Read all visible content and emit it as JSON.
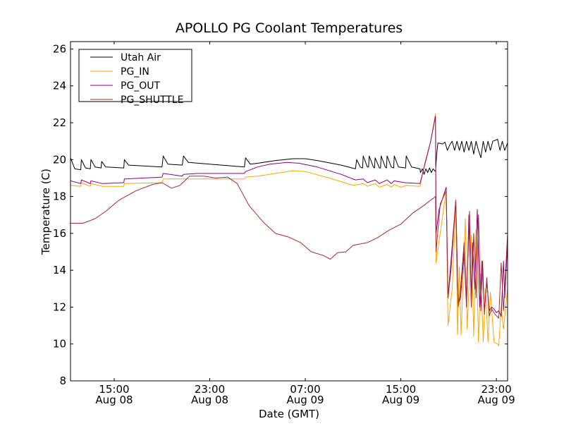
{
  "chart_data": {
    "type": "line",
    "title": "APOLLO PG Coolant Temperatures",
    "xlabel": "Date (GMT)",
    "ylabel": "Temperature (C)",
    "x_units": "hours since Aug 08 00:00 GMT",
    "xlim": [
      11.34,
      47.94
    ],
    "ylim": [
      8,
      26.4
    ],
    "yticks": [
      8,
      10,
      12,
      14,
      16,
      18,
      20,
      22,
      24,
      26
    ],
    "xticks": [
      {
        "x": 15,
        "time": "15:00",
        "date": "Aug 08"
      },
      {
        "x": 23,
        "time": "23:00",
        "date": "Aug 08"
      },
      {
        "x": 31,
        "time": "07:00",
        "date": "Aug 09"
      },
      {
        "x": 39,
        "time": "15:00",
        "date": "Aug 09"
      },
      {
        "x": 47,
        "time": "23:00",
        "date": "Aug 09"
      }
    ],
    "grid": false,
    "legend_position": "top-left",
    "series": [
      {
        "name": "Utah Air",
        "color": "#000000",
        "points": [
          [
            11.34,
            20.1
          ],
          [
            11.7,
            19.5
          ],
          [
            12.2,
            19.45
          ],
          [
            12.25,
            20.0
          ],
          [
            12.6,
            19.55
          ],
          [
            13.0,
            19.5
          ],
          [
            13.05,
            20.0
          ],
          [
            13.4,
            19.6
          ],
          [
            13.9,
            19.55
          ],
          [
            13.95,
            19.9
          ],
          [
            14.3,
            19.6
          ],
          [
            15.8,
            19.55
          ],
          [
            15.85,
            20.0
          ],
          [
            16.2,
            19.7
          ],
          [
            19.0,
            19.6
          ],
          [
            19.1,
            20.2
          ],
          [
            19.5,
            19.75
          ],
          [
            20.7,
            19.7
          ],
          [
            20.8,
            20.2
          ],
          [
            21.2,
            19.85
          ],
          [
            23,
            19.75
          ],
          [
            25.9,
            19.6
          ],
          [
            26.0,
            20.1
          ],
          [
            26.4,
            19.75
          ],
          [
            27,
            19.8
          ],
          [
            28.5,
            19.95
          ],
          [
            30,
            20.05
          ],
          [
            31,
            20.05
          ],
          [
            32,
            19.95
          ],
          [
            34,
            19.7
          ],
          [
            35.2,
            19.5
          ],
          [
            35.3,
            20.0
          ],
          [
            35.6,
            19.6
          ],
          [
            35.8,
            19.55
          ],
          [
            35.85,
            20.2
          ],
          [
            36.2,
            19.6
          ],
          [
            36.3,
            19.6
          ],
          [
            36.35,
            20.2
          ],
          [
            36.7,
            19.6
          ],
          [
            36.8,
            19.55
          ],
          [
            36.85,
            20.1
          ],
          [
            37.2,
            19.55
          ],
          [
            37.3,
            19.55
          ],
          [
            37.35,
            20.2
          ],
          [
            37.7,
            19.6
          ],
          [
            37.8,
            19.55
          ],
          [
            37.85,
            20.2
          ],
          [
            38.2,
            19.6
          ],
          [
            38.4,
            19.55
          ],
          [
            38.45,
            20.2
          ],
          [
            38.8,
            19.6
          ],
          [
            39.4,
            19.55
          ],
          [
            39.45,
            20.2
          ],
          [
            39.9,
            19.6
          ],
          [
            40.6,
            19.5
          ],
          [
            40.65,
            19.3
          ],
          [
            40.8,
            19.5
          ],
          [
            40.95,
            19.2
          ],
          [
            41.1,
            19.5
          ],
          [
            41.25,
            19.3
          ],
          [
            41.4,
            19.55
          ],
          [
            41.55,
            19.3
          ],
          [
            41.7,
            19.5
          ],
          [
            41.9,
            19.35
          ],
          [
            42.0,
            20.3
          ],
          [
            42.1,
            20.9
          ],
          [
            42.5,
            20.85
          ],
          [
            42.7,
            20.95
          ],
          [
            42.9,
            20.5
          ],
          [
            43.1,
            20.8
          ],
          [
            43.3,
            21.0
          ],
          [
            43.5,
            20.5
          ],
          [
            43.7,
            21.0
          ],
          [
            43.9,
            20.5
          ],
          [
            44.1,
            21.0
          ],
          [
            44.3,
            20.4
          ],
          [
            44.5,
            21.0
          ],
          [
            44.7,
            20.5
          ],
          [
            44.9,
            21.0
          ],
          [
            45.1,
            20.3
          ],
          [
            45.3,
            21.0
          ],
          [
            45.5,
            20.5
          ],
          [
            45.7,
            20.1
          ],
          [
            45.9,
            21.0
          ],
          [
            46.1,
            20.4
          ],
          [
            46.3,
            21.0
          ],
          [
            46.5,
            20.5
          ],
          [
            46.7,
            21.0
          ],
          [
            46.9,
            21.05
          ],
          [
            47.1,
            21.1
          ],
          [
            47.3,
            20.5
          ],
          [
            47.5,
            21.0
          ],
          [
            47.7,
            20.5
          ],
          [
            47.94,
            20.9
          ]
        ]
      },
      {
        "name": "PG_IN",
        "color": "#ffa500",
        "points": [
          [
            11.34,
            18.6
          ],
          [
            12.2,
            18.55
          ],
          [
            12.25,
            18.75
          ],
          [
            13.0,
            18.55
          ],
          [
            13.05,
            18.7
          ],
          [
            14.0,
            18.55
          ],
          [
            15.8,
            18.55
          ],
          [
            15.85,
            18.7
          ],
          [
            19.0,
            18.75
          ],
          [
            19.1,
            18.95
          ],
          [
            22,
            18.95
          ],
          [
            25.9,
            18.95
          ],
          [
            26.0,
            19.05
          ],
          [
            27,
            19.1
          ],
          [
            28.5,
            19.25
          ],
          [
            30,
            19.4
          ],
          [
            31,
            19.35
          ],
          [
            33,
            19.0
          ],
          [
            35,
            18.6
          ],
          [
            35.85,
            18.7
          ],
          [
            36.2,
            18.55
          ],
          [
            36.85,
            18.7
          ],
          [
            37.2,
            18.5
          ],
          [
            37.85,
            18.65
          ],
          [
            38.2,
            18.5
          ],
          [
            38.45,
            18.65
          ],
          [
            39,
            18.5
          ],
          [
            39.45,
            18.6
          ],
          [
            40.6,
            18.55
          ],
          [
            41.0,
            19.8
          ],
          [
            41.5,
            21.0
          ],
          [
            41.9,
            22.5
          ],
          [
            41.95,
            14.4
          ],
          [
            42.4,
            16.5
          ],
          [
            42.8,
            18.3
          ],
          [
            42.95,
            11.0
          ],
          [
            43.3,
            13.0
          ],
          [
            43.6,
            17.5
          ],
          [
            43.75,
            10.5
          ],
          [
            43.9,
            14.2
          ],
          [
            44.05,
            10.5
          ],
          [
            44.4,
            16.8
          ],
          [
            44.55,
            10.8
          ],
          [
            44.9,
            15.9
          ],
          [
            45.1,
            10.4
          ],
          [
            45.3,
            16.2
          ],
          [
            45.5,
            10.1
          ],
          [
            45.7,
            13.8
          ],
          [
            45.9,
            10.1
          ],
          [
            46.1,
            13.0
          ],
          [
            46.3,
            10.1
          ],
          [
            46.5,
            12.8
          ],
          [
            46.8,
            10.1
          ],
          [
            47.1,
            10.0
          ],
          [
            47.2,
            9.9
          ],
          [
            47.4,
            12.0
          ],
          [
            47.6,
            10.8
          ],
          [
            47.94,
            13.0
          ]
        ]
      },
      {
        "name": "PG_OUT",
        "color": "#8b008b",
        "points": [
          [
            11.34,
            18.85
          ],
          [
            12.2,
            18.7
          ],
          [
            12.25,
            18.9
          ],
          [
            13.0,
            18.7
          ],
          [
            13.05,
            18.85
          ],
          [
            14.0,
            18.7
          ],
          [
            15.8,
            18.75
          ],
          [
            15.85,
            18.95
          ],
          [
            19.0,
            19.05
          ],
          [
            19.1,
            19.25
          ],
          [
            20.7,
            19.1
          ],
          [
            20.8,
            19.2
          ],
          [
            22,
            19.25
          ],
          [
            25.9,
            19.25
          ],
          [
            26.0,
            19.35
          ],
          [
            27,
            19.6
          ],
          [
            28,
            19.75
          ],
          [
            29.5,
            19.85
          ],
          [
            30.5,
            19.8
          ],
          [
            32,
            19.6
          ],
          [
            34,
            19.2
          ],
          [
            35.2,
            18.9
          ],
          [
            35.85,
            18.95
          ],
          [
            36.2,
            18.75
          ],
          [
            36.85,
            18.9
          ],
          [
            37.2,
            18.7
          ],
          [
            37.85,
            18.9
          ],
          [
            38.2,
            18.7
          ],
          [
            38.45,
            18.85
          ],
          [
            39.3,
            18.75
          ],
          [
            40.6,
            18.7
          ],
          [
            41.0,
            19.7
          ],
          [
            41.5,
            21.0
          ],
          [
            41.9,
            22.35
          ],
          [
            41.95,
            16.0
          ],
          [
            42.2,
            17.3
          ],
          [
            42.8,
            18.5
          ],
          [
            42.95,
            12.5
          ],
          [
            43.2,
            14.5
          ],
          [
            43.6,
            17.8
          ],
          [
            43.8,
            12.2
          ],
          [
            44.0,
            12.5
          ],
          [
            44.3,
            15.0
          ],
          [
            44.5,
            12.0
          ],
          [
            44.7,
            17.0
          ],
          [
            44.9,
            12.3
          ],
          [
            45.0,
            15.5
          ],
          [
            45.2,
            13.0
          ],
          [
            45.4,
            17.3
          ],
          [
            45.6,
            12.0
          ],
          [
            45.8,
            14.5
          ],
          [
            46.0,
            11.8
          ],
          [
            46.2,
            13.4
          ],
          [
            46.4,
            11.8
          ],
          [
            46.6,
            12.0
          ],
          [
            46.8,
            11.9
          ],
          [
            47.0,
            11.7
          ],
          [
            47.2,
            11.8
          ],
          [
            47.4,
            11.5
          ],
          [
            47.6,
            14.5
          ],
          [
            47.7,
            12.5
          ],
          [
            47.94,
            15.5
          ]
        ]
      },
      {
        "name": "PG_SHUTTLE",
        "color": "#a52a2a",
        "points": [
          [
            11.34,
            16.55
          ],
          [
            12.4,
            16.55
          ],
          [
            13.4,
            16.8
          ],
          [
            14.3,
            17.2
          ],
          [
            15.4,
            17.8
          ],
          [
            16.8,
            18.3
          ],
          [
            18.2,
            18.65
          ],
          [
            19.0,
            18.75
          ],
          [
            19.8,
            18.45
          ],
          [
            20.5,
            18.6
          ],
          [
            21.3,
            19.1
          ],
          [
            22.5,
            19.1
          ],
          [
            23.5,
            19.0
          ],
          [
            24.5,
            19.05
          ],
          [
            25.3,
            18.7
          ],
          [
            26.3,
            17.5
          ],
          [
            27.5,
            16.6
          ],
          [
            28.5,
            16.0
          ],
          [
            29.6,
            15.8
          ],
          [
            30.6,
            15.5
          ],
          [
            31.5,
            15.0
          ],
          [
            32.5,
            14.8
          ],
          [
            33.1,
            14.6
          ],
          [
            33.7,
            14.95
          ],
          [
            34.4,
            15.0
          ],
          [
            35.0,
            15.35
          ],
          [
            36.2,
            15.5
          ],
          [
            37.0,
            15.75
          ],
          [
            38.1,
            16.2
          ],
          [
            39.0,
            16.5
          ],
          [
            40.0,
            17.1
          ],
          [
            40.9,
            17.5
          ],
          [
            41.9,
            18.0
          ],
          [
            41.95,
            15.0
          ],
          [
            42.3,
            17.6
          ],
          [
            42.8,
            18.3
          ],
          [
            42.95,
            12.5
          ],
          [
            43.2,
            14.0
          ],
          [
            43.6,
            17.8
          ],
          [
            43.8,
            12.0
          ],
          [
            44.0,
            13.0
          ],
          [
            44.3,
            15.5
          ],
          [
            44.5,
            12.2
          ],
          [
            44.75,
            17.2
          ],
          [
            44.9,
            12.0
          ],
          [
            45.1,
            16.0
          ],
          [
            45.3,
            12.5
          ],
          [
            45.5,
            17.0
          ],
          [
            45.7,
            11.8
          ],
          [
            45.85,
            14.5
          ],
          [
            46.0,
            11.6
          ],
          [
            46.2,
            13.6
          ],
          [
            46.4,
            11.5
          ],
          [
            46.6,
            11.9
          ],
          [
            46.9,
            11.6
          ],
          [
            47.2,
            11.4
          ],
          [
            47.4,
            14.4
          ],
          [
            47.6,
            11.8
          ],
          [
            47.94,
            16.0
          ]
        ]
      }
    ]
  }
}
